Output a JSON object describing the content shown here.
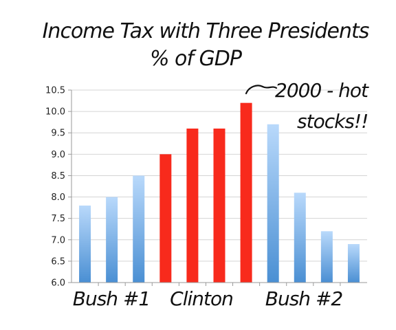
{
  "title_line1": "Income Tax with Three Presidents",
  "title_line2": "% of GDP",
  "annotation": {
    "line1": "2000 - hot",
    "line2": "stocks!!"
  },
  "group_labels": [
    "Bush #1",
    "Clinton",
    "Bush #2"
  ],
  "colors": {
    "blue_top": "#b9d9fb",
    "blue_bottom": "#4a8fd3",
    "red": "#f82a1c",
    "grid": "#d4d4d4",
    "axis": "#9a9a9a"
  },
  "chart_data": {
    "type": "bar",
    "title": "Income Tax with Three Presidents % of GDP",
    "ylim": [
      6.0,
      10.5
    ],
    "yticks": [
      "6.0",
      "6.5",
      "7.0",
      "7.5",
      "8.0",
      "8.5",
      "9.0",
      "9.5",
      "10.0",
      "10.5"
    ],
    "grid": true,
    "groups": [
      {
        "label": "Bush #1",
        "color": "blue",
        "values": [
          7.8,
          8.0,
          8.5
        ]
      },
      {
        "label": "Clinton",
        "color": "red",
        "values": [
          9.0,
          9.6,
          9.6,
          10.2
        ]
      },
      {
        "label": "Bush #2",
        "color": "blue",
        "values": [
          9.7,
          8.1,
          7.2,
          6.9
        ]
      }
    ]
  }
}
